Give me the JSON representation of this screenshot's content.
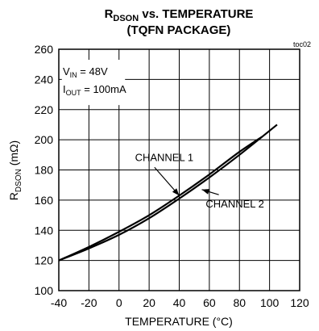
{
  "chart_data": {
    "type": "line",
    "title_line1": {
      "main": "R",
      "sub": "DSON",
      "rest": " vs. TEMPERATURE"
    },
    "title_line2": "(TQFN PACKAGE)",
    "figure_code": "toc02",
    "xlabel": "TEMPERATURE (°C)",
    "ylabel": {
      "main": "R",
      "sub": "DSON",
      "rest": " (mΩ)"
    },
    "xlim": [
      -40,
      120
    ],
    "ylim": [
      100,
      260
    ],
    "xticks": [
      -40,
      -20,
      0,
      20,
      40,
      60,
      80,
      100,
      120
    ],
    "xtick_labels": [
      "-40",
      "-20",
      "0",
      "20",
      "40",
      "60",
      "80",
      "100",
      "120"
    ],
    "yticks": [
      100,
      120,
      140,
      160,
      180,
      200,
      220,
      240,
      260
    ],
    "ytick_labels": [
      "100",
      "120",
      "140",
      "160",
      "180",
      "200",
      "220",
      "240",
      "260"
    ],
    "grid": true,
    "conditions": [
      {
        "main": "V",
        "sub": "IN",
        "rest": " = 48V"
      },
      {
        "main": "I",
        "sub": "OUT",
        "rest": " = 100mA"
      }
    ],
    "series": [
      {
        "name": "CHANNEL 1",
        "x": [
          -40,
          -20,
          0,
          20,
          40,
          60,
          80,
          95
        ],
        "y": [
          120,
          129,
          139,
          150,
          163,
          177,
          192,
          202
        ]
      },
      {
        "name": "CHANNEL 2",
        "x": [
          -40,
          -20,
          0,
          20,
          40,
          60,
          80,
          105
        ],
        "y": [
          120,
          128,
          137,
          148,
          161,
          175,
          190,
          210
        ]
      }
    ],
    "annotations": [
      {
        "series": "CHANNEL 1",
        "label_x": 30,
        "label_y": 186,
        "arrow_to_x": 40,
        "arrow_to_y": 163
      },
      {
        "series": "CHANNEL 2",
        "label_x": 77,
        "label_y": 155,
        "arrow_to_x": 55,
        "arrow_to_y": 167
      }
    ]
  }
}
